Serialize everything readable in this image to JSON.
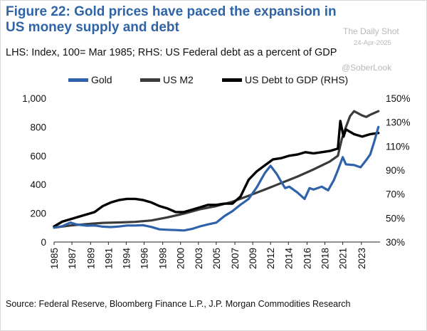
{
  "title": "Figure 22: Gold prices have paced the expansion in US money supply and debt",
  "subtitle": "LHS: Index, 100= Mar 1985; RHS: US Federal debt as a percent of GDP",
  "watermark": {
    "line1": "The Daily Shot",
    "date": "24-Apr-2025",
    "handle": "@SoberLook"
  },
  "source": "Source: Federal Reserve, Bloomberg Finance L.P., J.P. Morgan Commodities Research",
  "colors": {
    "gold": "#2e63ab",
    "m2": "#3b3b3b",
    "debt": "#000000"
  },
  "chart_data": {
    "type": "line",
    "title": "Figure 22: Gold prices have paced the expansion in US money supply and debt",
    "xlim": [
      1985,
      2025.2
    ],
    "ylim_left": [
      0,
      1000
    ],
    "ylim_right": [
      30,
      150
    ],
    "x_ticks": [
      "1985",
      "1987",
      "1989",
      "1991",
      "1994",
      "1996",
      "1998",
      "2000",
      "2003",
      "2005",
      "2007",
      "2009",
      "2012",
      "2014",
      "2016",
      "2018",
      "2021",
      "2023"
    ],
    "x_tick_values": [
      1985,
      1987.2,
      1989.5,
      1991.7,
      1993.9,
      1996.1,
      1998.4,
      2000.6,
      2002.8,
      2005,
      2007.3,
      2009.5,
      2011.7,
      2013.9,
      2016.2,
      2018.4,
      2020.6,
      2022.9
    ],
    "y_ticks_left": [
      "0",
      "200",
      "400",
      "600",
      "800",
      "1,000"
    ],
    "y_tick_values_left": [
      0,
      200,
      400,
      600,
      800,
      1000
    ],
    "y_ticks_right": [
      "30%",
      "50%",
      "70%",
      "90%",
      "110%",
      "130%",
      "150%"
    ],
    "y_tick_values_right": [
      30,
      50,
      70,
      90,
      110,
      130,
      150
    ],
    "series": [
      {
        "name": "Gold",
        "axis": "left",
        "points": [
          [
            1985,
            100
          ],
          [
            1986,
            110
          ],
          [
            1987,
            135
          ],
          [
            1987.8,
            122
          ],
          [
            1989,
            114
          ],
          [
            1990,
            115
          ],
          [
            1991,
            107
          ],
          [
            1992,
            104
          ],
          [
            1993,
            108
          ],
          [
            1994,
            115
          ],
          [
            1995,
            115
          ],
          [
            1996,
            117
          ],
          [
            1997,
            105
          ],
          [
            1998,
            88
          ],
          [
            1999,
            85
          ],
          [
            2000,
            83
          ],
          [
            2001,
            80
          ],
          [
            2002,
            91
          ],
          [
            2003,
            109
          ],
          [
            2004,
            123
          ],
          [
            2005,
            135
          ],
          [
            2006,
            180
          ],
          [
            2007,
            215
          ],
          [
            2008,
            260
          ],
          [
            2009,
            300
          ],
          [
            2010,
            380
          ],
          [
            2011,
            480
          ],
          [
            2011.7,
            530
          ],
          [
            2012.5,
            470
          ],
          [
            2013,
            420
          ],
          [
            2013.5,
            375
          ],
          [
            2014,
            385
          ],
          [
            2015,
            345
          ],
          [
            2015.9,
            300
          ],
          [
            2016.5,
            375
          ],
          [
            2017,
            365
          ],
          [
            2018,
            385
          ],
          [
            2018.8,
            360
          ],
          [
            2019.5,
            430
          ],
          [
            2020,
            500
          ],
          [
            2020.6,
            590
          ],
          [
            2021,
            540
          ],
          [
            2022,
            535
          ],
          [
            2022.8,
            520
          ],
          [
            2023.5,
            570
          ],
          [
            2024,
            610
          ],
          [
            2024.5,
            700
          ],
          [
            2025,
            800
          ]
        ]
      },
      {
        "name": "US M2",
        "axis": "left",
        "points": [
          [
            1985,
            100
          ],
          [
            1987,
            115
          ],
          [
            1989,
            125
          ],
          [
            1991,
            133
          ],
          [
            1993,
            136
          ],
          [
            1995,
            140
          ],
          [
            1997,
            150
          ],
          [
            1999,
            172
          ],
          [
            2001,
            197
          ],
          [
            2003,
            228
          ],
          [
            2005,
            250
          ],
          [
            2007,
            280
          ],
          [
            2009,
            322
          ],
          [
            2011,
            365
          ],
          [
            2013,
            410
          ],
          [
            2015,
            455
          ],
          [
            2017,
            505
          ],
          [
            2019,
            560
          ],
          [
            2020,
            600
          ],
          [
            2020.5,
            720
          ],
          [
            2021,
            800
          ],
          [
            2021.5,
            875
          ],
          [
            2022,
            910
          ],
          [
            2023,
            880
          ],
          [
            2023.5,
            870
          ],
          [
            2024,
            885
          ],
          [
            2025,
            910
          ]
        ]
      },
      {
        "name": "US Debt to GDP (RHS)",
        "axis": "right",
        "points": [
          [
            1985,
            43
          ],
          [
            1986,
            47
          ],
          [
            1987,
            49
          ],
          [
            1988,
            51
          ],
          [
            1989,
            53
          ],
          [
            1990,
            55
          ],
          [
            1991,
            60
          ],
          [
            1992,
            63
          ],
          [
            1993,
            65
          ],
          [
            1994,
            66
          ],
          [
            1995,
            66
          ],
          [
            1996,
            65
          ],
          [
            1997,
            63
          ],
          [
            1998,
            60
          ],
          [
            1999,
            58
          ],
          [
            2000,
            55
          ],
          [
            2001,
            55
          ],
          [
            2002,
            57
          ],
          [
            2003,
            59
          ],
          [
            2004,
            61
          ],
          [
            2005,
            61
          ],
          [
            2006,
            62
          ],
          [
            2007,
            62
          ],
          [
            2008,
            68
          ],
          [
            2009,
            82
          ],
          [
            2010,
            89
          ],
          [
            2011,
            94
          ],
          [
            2012,
            99
          ],
          [
            2013,
            100
          ],
          [
            2014,
            102
          ],
          [
            2015,
            103
          ],
          [
            2016,
            105
          ],
          [
            2017,
            104
          ],
          [
            2018,
            105
          ],
          [
            2019,
            106
          ],
          [
            2020,
            108
          ],
          [
            2020.3,
            131
          ],
          [
            2020.7,
            118
          ],
          [
            2021,
            124
          ],
          [
            2022,
            120
          ],
          [
            2023,
            118
          ],
          [
            2024,
            120
          ],
          [
            2025,
            121
          ]
        ]
      }
    ]
  }
}
